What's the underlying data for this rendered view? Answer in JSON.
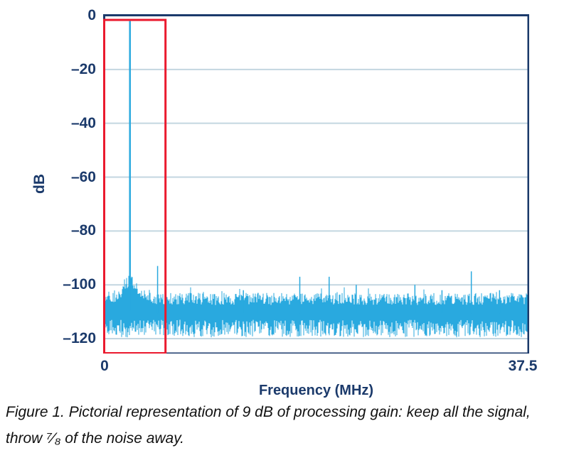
{
  "figure": {
    "caption_line1": "Figure 1. Pictorial representation of 9 dB of processing gain: keep all the signal,",
    "caption_line2": "throw ⁷⁄₈ of the noise away."
  },
  "chart_data": {
    "type": "line",
    "title": "",
    "xlabel": "Frequency (MHz)",
    "ylabel": "dB",
    "xlim": [
      0,
      37.5
    ],
    "ylim": [
      -125,
      0
    ],
    "x_ticks": [
      0,
      37.5
    ],
    "x_tick_labels": [
      "0",
      "37.5"
    ],
    "y_ticks": [
      0,
      -20,
      -40,
      -60,
      -80,
      -100,
      -120
    ],
    "y_tick_labels": [
      "0",
      "–20",
      "–40",
      "–60",
      "–80",
      "–100",
      "–120"
    ],
    "grid": "horizontal",
    "legend": "none",
    "signal": {
      "freq_mhz": 2.25,
      "peak_db": -2
    },
    "spurs": [
      {
        "freq_mhz": 4.7,
        "peak_db": -93
      },
      {
        "freq_mhz": 12.3,
        "peak_db": -102
      },
      {
        "freq_mhz": 13.6,
        "peak_db": -103
      },
      {
        "freq_mhz": 17.3,
        "peak_db": -97
      },
      {
        "freq_mhz": 19.9,
        "peak_db": -97
      },
      {
        "freq_mhz": 22.3,
        "peak_db": -100
      },
      {
        "freq_mhz": 27.5,
        "peak_db": -100
      },
      {
        "freq_mhz": 29.9,
        "peak_db": -102
      },
      {
        "freq_mhz": 32.5,
        "peak_db": -95
      },
      {
        "freq_mhz": 35.0,
        "peak_db": -102
      }
    ],
    "noise_floor": {
      "mean_db": -110.5,
      "top_typical_db": -106,
      "bottom_typical_db": -116,
      "min_db": -121,
      "skirt_center_mhz": 2.25,
      "skirt_rise_db": 6,
      "seed": 20090417
    },
    "highlight_box": {
      "x0_mhz": 0,
      "x1_mhz": 5.4,
      "y0_db": -125,
      "y1_db": -1.6
    },
    "colors": {
      "trace": "#29A9DF",
      "axis": "#1B3A6B",
      "grid": "#C3D6E0",
      "highlight": "#EA1A2E",
      "background": "#FFFFFF"
    }
  }
}
